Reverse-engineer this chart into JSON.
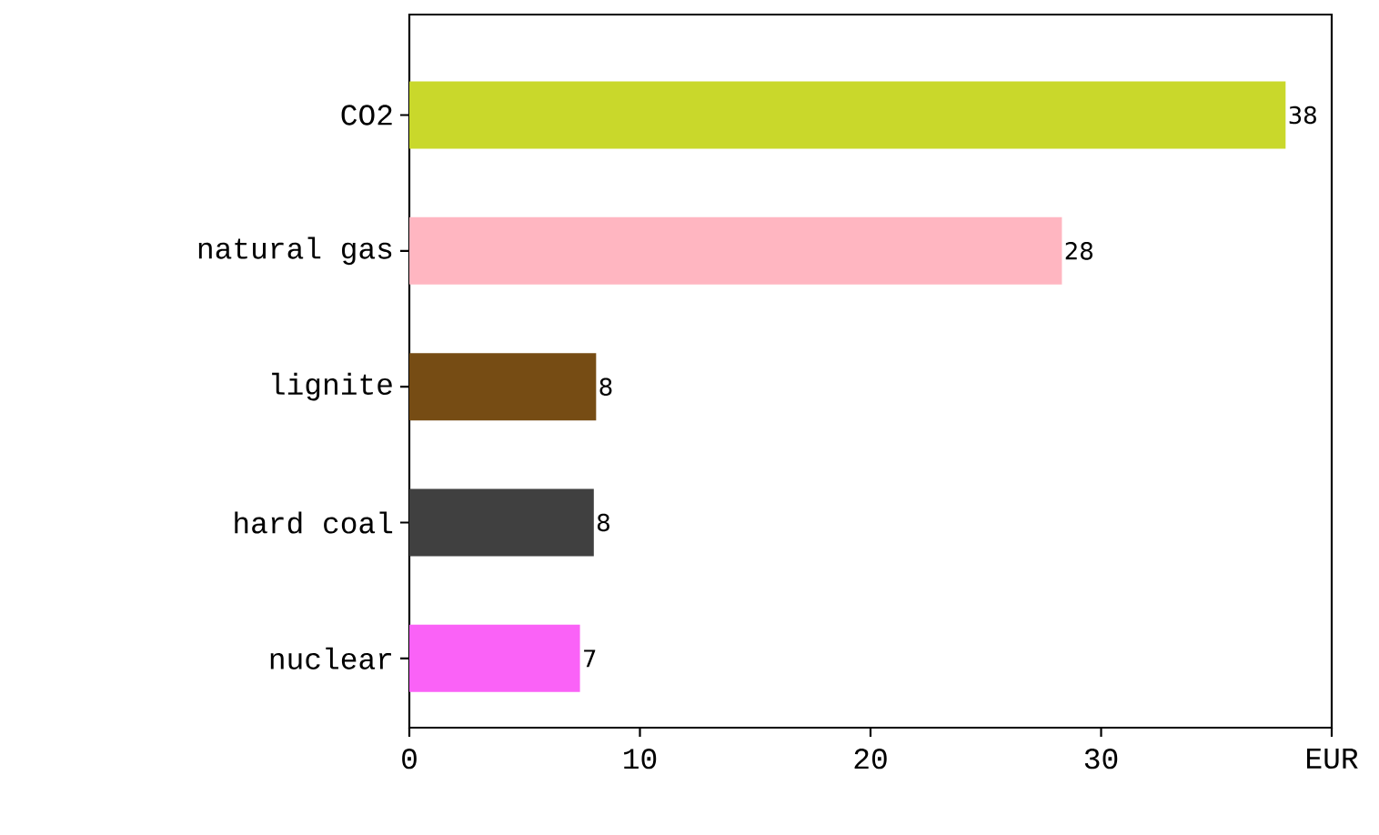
{
  "chart_data": {
    "type": "bar",
    "orientation": "horizontal",
    "categories": [
      "CO2",
      "natural gas",
      "lignite",
      "hard coal",
      "nuclear"
    ],
    "values": [
      38.0,
      28.3,
      8.1,
      8.0,
      7.4
    ],
    "value_labels": [
      "38",
      "28",
      "8",
      "8",
      "7"
    ],
    "colors": [
      "#c9d82b",
      "#ffb6c1",
      "#764c14",
      "#404040",
      "#fa62f7"
    ],
    "xlim": [
      0,
      40
    ],
    "xticks": [
      0,
      10,
      20,
      30,
      {
        "value": 40,
        "label": "EUR"
      }
    ]
  }
}
